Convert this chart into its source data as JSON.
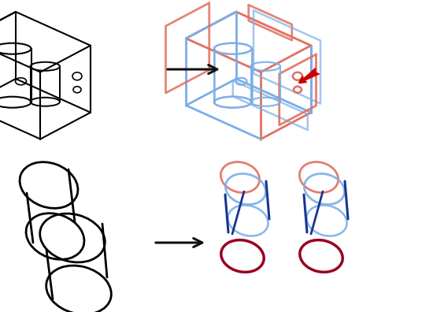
{
  "background": "#ffffff",
  "arrow_color": "#111111",
  "red_arrow_color": "#cc0000",
  "colors": {
    "orange": "#e07060",
    "blue_light": "#7aaee8",
    "blue_mid": "#3a6ab0",
    "blue_dark": "#1a3590",
    "red_dark": "#990022",
    "gray_light": "#aaaacc",
    "black": "#000000"
  }
}
